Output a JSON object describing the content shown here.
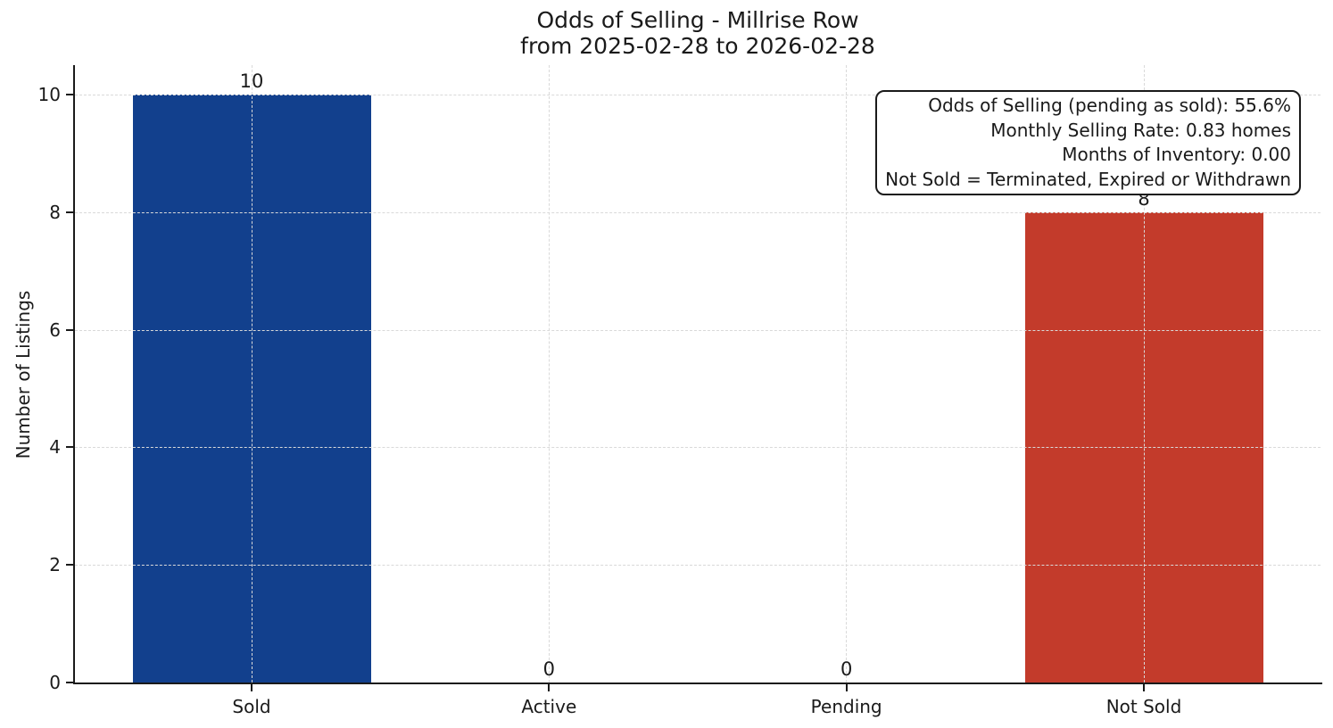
{
  "chart_data": {
    "type": "bar",
    "title": "Odds of Selling - Millrise Row",
    "subtitle": "from 2025-02-28 to 2026-02-28",
    "ylabel": "Number of Listings",
    "xlabel": "",
    "categories": [
      "Sold",
      "Active",
      "Pending",
      "Not Sold"
    ],
    "values": [
      10,
      0,
      0,
      8
    ],
    "bar_colors": [
      "#12408d",
      null,
      null,
      "#c33b2b"
    ],
    "yticks": [
      0,
      2,
      4,
      6,
      8,
      10
    ],
    "ylim": [
      0,
      10.5
    ],
    "grid": true,
    "legend": "none",
    "annotation": {
      "lines": [
        "Odds of Selling (pending as sold): 55.6%",
        "Monthly Selling Rate: 0.83 homes",
        "Months of Inventory: 0.00",
        "Not Sold = Terminated, Expired or Withdrawn"
      ]
    },
    "colors": {
      "axis": "#1a1a1a",
      "grid": "#d9d9d9",
      "sold_bar": "#12408d",
      "not_sold_bar": "#c33b2b"
    }
  }
}
